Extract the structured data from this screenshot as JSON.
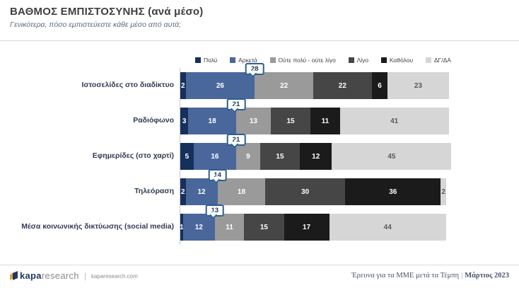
{
  "header": {
    "title": "ΒΑΘΜΟΣ ΕΜΠΙΣΤΟΣΥΝΗΣ (ανά μέσο)",
    "subtitle": "Γενικότερα, πόσο εμπιστεύεστε κάθε μέσο από αυτά;"
  },
  "chart_data": {
    "type": "bar",
    "orientation": "horizontal",
    "stacked": true,
    "xlim": [
      0,
      100
    ],
    "legend_position": "top",
    "categories": [
      "Ιστοσελίδες στο διαδίκτυο",
      "Ραδιόφωνο",
      "Εφημερίδες (στο χαρτί)",
      "Τηλεόραση",
      "Μέσα κοινωνικής δικτύωσης (social media)"
    ],
    "series": [
      {
        "name": "Πολύ",
        "color": "#16305c",
        "values": [
          2,
          3,
          5,
          2,
          1
        ]
      },
      {
        "name": "Αρκετά",
        "color": "#4a679c",
        "values": [
          26,
          18,
          16,
          12,
          12
        ]
      },
      {
        "name": "Ούτε πολύ - ούτε λίγο",
        "color": "#9a9a9a",
        "values": [
          22,
          13,
          9,
          18,
          11
        ]
      },
      {
        "name": "Λίγο",
        "color": "#464646",
        "values": [
          22,
          15,
          15,
          30,
          15
        ]
      },
      {
        "name": "Καθόλου",
        "color": "#1b1b1b",
        "values": [
          6,
          11,
          12,
          36,
          17
        ]
      },
      {
        "name": "ΔΓ/ΔΑ",
        "color": "#d6d6d6",
        "values": [
          23,
          41,
          45,
          2,
          44
        ]
      }
    ],
    "callouts": [
      28,
      21,
      21,
      14,
      13
    ],
    "callout_meaning": "Πολύ + Αρκετά"
  },
  "footer": {
    "brand_bold": "kapa",
    "brand_light": "research",
    "brand_divider": "|",
    "brand_url": "kaparesearch.com",
    "source_text": "Έρευνα για τα ΜΜΕ μετά τα Τέμπη",
    "source_sep": "|",
    "source_date": "Μάρτιος 2023"
  }
}
